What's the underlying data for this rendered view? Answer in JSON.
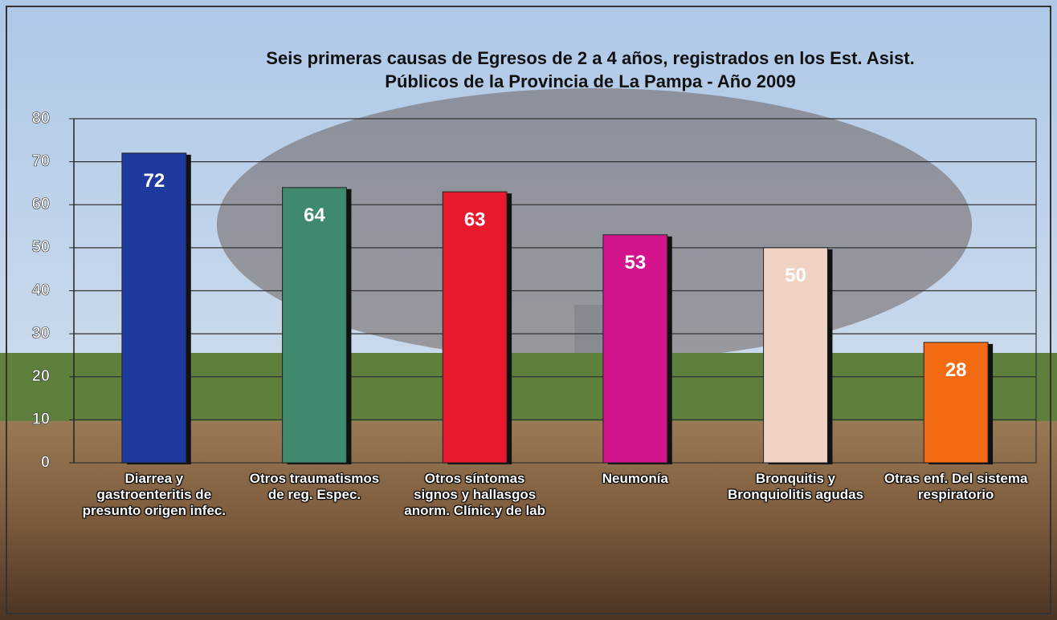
{
  "chart_data": {
    "type": "bar",
    "title": [
      "Seis primeras causas de Egresos de 2 a 4 años, registrados en los Est. Asist.",
      "Públicos de la Provincia de La Pampa - Año 2009"
    ],
    "categories": [
      "Diarrea y gastroenteritis de presunto origen infec.",
      "Otros traumatismos de reg. Espec.",
      "Otros síntomas signos y hallasgos anorm. Clínic.y de lab",
      "Neumonía",
      "Bronquitis y Bronquiolitis agudas",
      "Otras enf. Del sistema respiratorio"
    ],
    "values": [
      72,
      64,
      63,
      53,
      50,
      28
    ],
    "colors": [
      "#1f3a9e",
      "#3f8a6e",
      "#e8192c",
      "#d4148c",
      "#f0d2c4",
      "#f26a12"
    ],
    "ylim": [
      0,
      80
    ],
    "yticks": [
      0,
      10,
      20,
      30,
      40,
      50,
      60,
      70,
      80
    ],
    "grid": true
  }
}
